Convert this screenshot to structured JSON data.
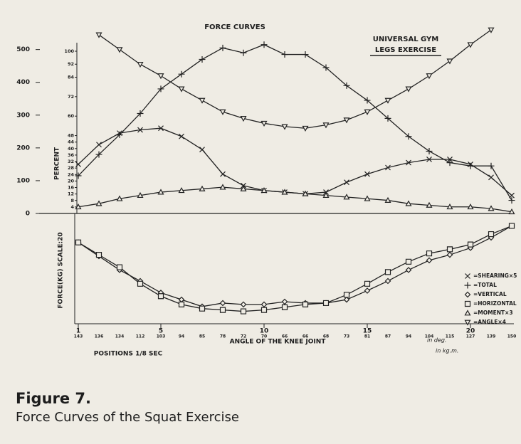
{
  "figure": {
    "label": "Figure 7.",
    "caption": "Force Curves of the Squat Exercise"
  },
  "chart_data": [
    {
      "type": "line",
      "title": "FORCE CURVES",
      "annotations": [
        "UNIVERSAL GYM",
        "LEGS EXERCISE"
      ],
      "x": [
        1,
        2,
        3,
        4,
        5,
        6,
        7,
        8,
        9,
        10,
        11,
        12,
        13,
        14,
        15,
        16,
        17,
        18,
        19,
        20,
        21,
        22
      ],
      "xlim": [
        1,
        22
      ],
      "xticks": [
        1,
        5,
        10,
        15,
        20
      ],
      "angles": [
        143,
        136,
        134,
        112,
        103,
        94,
        85,
        78,
        72,
        70,
        66,
        66,
        68,
        73,
        81,
        87,
        94,
        104,
        115,
        127,
        139,
        150
      ],
      "ylim": [
        0,
        560
      ],
      "yticks": [
        0,
        100,
        200,
        300,
        400,
        500
      ],
      "y2label": "PERCENT",
      "y2lim": [
        0,
        100
      ],
      "y2ticks": [
        4,
        8,
        12,
        16,
        20,
        24,
        28,
        32,
        36,
        40,
        44,
        48,
        60,
        72,
        84,
        92,
        100
      ],
      "color": "#222222",
      "series": [
        {
          "name": "=SHEARING×5",
          "marker": "x",
          "values": [
            150,
            210,
            245,
            255,
            260,
            235,
            195,
            120,
            85,
            70,
            65,
            60,
            65,
            95,
            120,
            140,
            155,
            165,
            165,
            150,
            110,
            55
          ]
        },
        {
          "name": "=TOTAL",
          "marker": "plus",
          "values": [
            115,
            180,
            240,
            305,
            380,
            425,
            470,
            505,
            490,
            515,
            485,
            485,
            445,
            390,
            345,
            290,
            235,
            190,
            155,
            145,
            145,
            40
          ]
        },
        {
          "name": "=MOMENT×3",
          "marker": "triangle",
          "values": [
            20,
            30,
            45,
            55,
            65,
            70,
            75,
            80,
            75,
            70,
            65,
            60,
            55,
            50,
            45,
            40,
            30,
            25,
            20,
            20,
            15,
            5
          ]
        },
        {
          "name": "=ANGLE×4",
          "marker": "triangle-down",
          "values": [
            null,
            545,
            500,
            455,
            420,
            380,
            345,
            310,
            290,
            275,
            265,
            260,
            270,
            285,
            310,
            345,
            380,
            420,
            465,
            515,
            560,
            null
          ]
        }
      ]
    },
    {
      "type": "line",
      "ylabel": "FORCE(KG) SCALE:20",
      "xlabel": "ANGLE OF THE KNEE JOINT",
      "xlabel2": "POSITIONS 1/8 SEC",
      "annotations": [
        "in deg.",
        "in kg.m."
      ],
      "x": [
        1,
        2,
        3,
        4,
        5,
        6,
        7,
        8,
        9,
        10,
        11,
        12,
        13,
        14,
        15,
        16,
        17,
        18,
        19,
        20,
        21,
        22
      ],
      "xlim": [
        1,
        22
      ],
      "ylim": [
        0,
        160
      ],
      "color": "#222222",
      "series": [
        {
          "name": "=VERTICAL",
          "marker": "diamond",
          "values": [
            118,
            98,
            78,
            62,
            45,
            35,
            25,
            30,
            28,
            28,
            32,
            30,
            30,
            35,
            48,
            62,
            78,
            92,
            100,
            110,
            125,
            142
          ]
        },
        {
          "name": "=HORIZONTAL",
          "marker": "square",
          "values": [
            118,
            100,
            82,
            58,
            40,
            28,
            22,
            20,
            18,
            20,
            24,
            28,
            30,
            42,
            58,
            75,
            90,
            102,
            108,
            115,
            130,
            142
          ]
        }
      ]
    }
  ]
}
